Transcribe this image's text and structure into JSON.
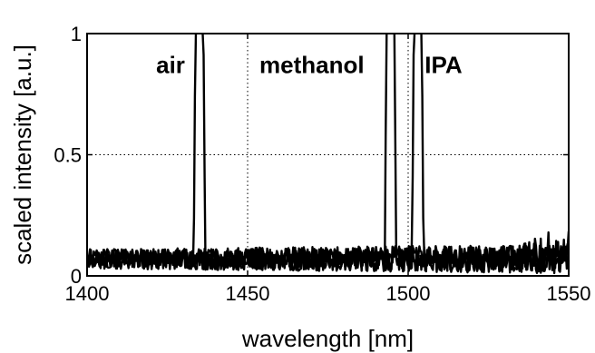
{
  "chart_data": {
    "type": "line",
    "title": "",
    "xlabel": "wavelength [nm]",
    "ylabel": "scaled intensity [a.u.]",
    "xlim": [
      1400,
      1550
    ],
    "ylim": [
      0,
      1
    ],
    "xticks": [
      1400,
      1450,
      1500,
      1550
    ],
    "xtick_labels": [
      "1400",
      "1450",
      "1500",
      "1550"
    ],
    "yticks": [
      0,
      0.5,
      1
    ],
    "ytick_labels": [
      "0",
      "0.5",
      "1"
    ],
    "grid": true,
    "baseline_noise_level": 0.07,
    "series": [
      {
        "name": "air",
        "peak_center": 1435,
        "peak_value": 1.0
      },
      {
        "name": "methanol",
        "peak_center": 1494.5,
        "peak_value": 1.0
      },
      {
        "name": "IPA",
        "peak_center": 1503,
        "peak_value": 1.0
      }
    ],
    "annotations": [
      {
        "text": "air",
        "x": 1426,
        "y": 0.87
      },
      {
        "text": "methanol",
        "x": 1470,
        "y": 0.87
      },
      {
        "text": "IPA",
        "x": 1511,
        "y": 0.87
      }
    ]
  }
}
